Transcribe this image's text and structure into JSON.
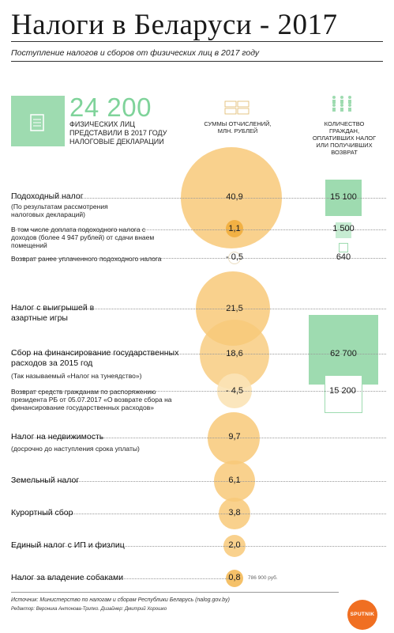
{
  "title": "Налоги в Беларуси - 2017",
  "subtitle": "Поступление налогов и сборов от физических лиц в 2017 году",
  "declarations": {
    "value": "24 200",
    "text": "ФИЗИЧЕСКИХ ЛИЦ ПРЕДСТАВИЛИ В 2017 ГОДУ НАЛОГОВЫЕ ДЕКЛАРАЦИИ"
  },
  "columns": {
    "sums": "СУММЫ ОТЧИСЛЕНИЙ, МЛН. РУБЛЕЙ",
    "count": "КОЛИЧЕСТВО ГРАЖДАН, ОПЛАТИВШИХ НАЛОГ ИЛИ ПОЛУЧИВШИХ ВОЗВРАТ"
  },
  "rows": {
    "income": {
      "label": "Подоходный налог",
      "note": "(По результатам рассмотрения налоговых деклараций)",
      "value": "40,9",
      "count": "15 100"
    },
    "surcharge": {
      "label": "В том числе доплата подоходного налога с доходов (более 4 947 рублей) от сдачи внаем помещений",
      "value": "1,1",
      "count": "1 500"
    },
    "refund": {
      "label": "Возврат ранее уплаченного подоходного налога",
      "value": "- 0,5",
      "count": "640"
    },
    "gambling": {
      "label": "Налог с выигрышей в азартные игры",
      "value": "21,5"
    },
    "fee": {
      "label": "Сбор на финансирование государственных расходов за 2015 год",
      "note": "(Так называемый «Налог на тунеядство»)",
      "value": "18,6",
      "count": "62 700"
    },
    "feeReturn": {
      "label": "Возврат средств гражданам по распоряжению президента РБ от 05.07.2017 «О возврате сбора на финансирование государственных расходов»",
      "value": "- 4,5",
      "count": "15 200"
    },
    "property": {
      "label": "Налог на недвижимость",
      "note": "(досрочно до наступления срока уплаты)",
      "value": "9,7"
    },
    "land": {
      "label": "Земельный налог",
      "value": "6,1"
    },
    "resort": {
      "label": "Курортный сбор",
      "value": "3,8"
    },
    "single": {
      "label": "Единый налог с ИП и физлиц",
      "value": "2,0"
    },
    "dogs": {
      "label": "Налог за владение собаками",
      "value": "0,8",
      "side": "786 900 руб."
    }
  },
  "footer": {
    "source": "Источник: Министерство по налогам и сборам Республики Беларусь (nalog.gov.by)",
    "credits": "Редактор: Вероника Антонова-Трипко. Дизайнер: Дмитрий Хорошко"
  },
  "logo": "SPUTNIK",
  "colors": {
    "circle": "#f8c979",
    "green": "#9edbb0",
    "accent": "#f2b144"
  }
}
